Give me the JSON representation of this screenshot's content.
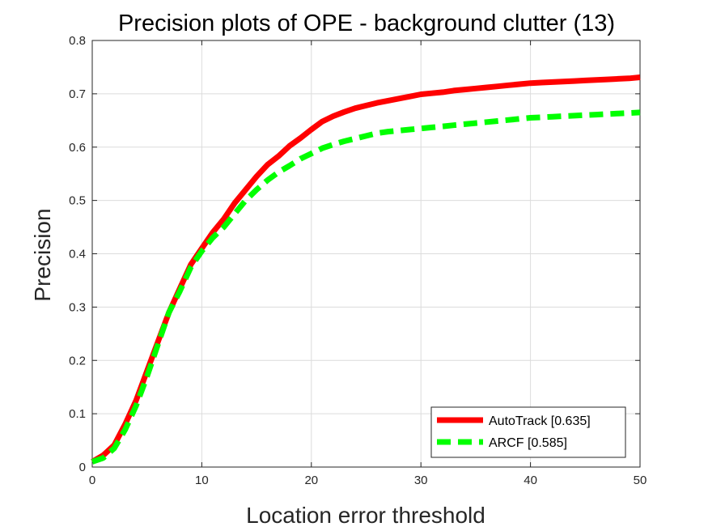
{
  "chart_data": {
    "type": "line",
    "title": "Precision plots of OPE - background clutter (13)",
    "xlabel": "Location error threshold",
    "ylabel": "Precision",
    "xlim": [
      0,
      50
    ],
    "ylim": [
      0,
      0.8
    ],
    "xticks": [
      "0",
      "10",
      "20",
      "30",
      "40",
      "50"
    ],
    "yticks": [
      "0",
      "0.1",
      "0.2",
      "0.3",
      "0.4",
      "0.5",
      "0.6",
      "0.7",
      "0.8"
    ],
    "grid": true,
    "legend_position": "bottom-right",
    "x": [
      0,
      1,
      2,
      3,
      4,
      5,
      6,
      7,
      8,
      9,
      10,
      11,
      12,
      13,
      14,
      15,
      16,
      17,
      18,
      19,
      20,
      21,
      22,
      23,
      24,
      25,
      26,
      27,
      28,
      29,
      30,
      31,
      32,
      33,
      34,
      35,
      36,
      37,
      38,
      39,
      40,
      41,
      42,
      43,
      44,
      45,
      46,
      47,
      48,
      49,
      50
    ],
    "series": [
      {
        "name": "AutoTrack [0.635]",
        "color": "#ff0000",
        "style": "solid",
        "values": [
          0.01,
          0.022,
          0.041,
          0.08,
          0.125,
          0.18,
          0.235,
          0.29,
          0.335,
          0.38,
          0.41,
          0.44,
          0.465,
          0.495,
          0.52,
          0.545,
          0.567,
          0.583,
          0.602,
          0.617,
          0.633,
          0.648,
          0.658,
          0.666,
          0.673,
          0.678,
          0.683,
          0.687,
          0.691,
          0.695,
          0.699,
          0.701,
          0.703,
          0.706,
          0.708,
          0.71,
          0.712,
          0.714,
          0.716,
          0.718,
          0.72,
          0.721,
          0.722,
          0.723,
          0.724,
          0.725,
          0.726,
          0.727,
          0.728,
          0.729,
          0.731
        ]
      },
      {
        "name": "ARCF [0.585]",
        "color": "#00ff00",
        "style": "dashed",
        "values": [
          0.01,
          0.017,
          0.035,
          0.07,
          0.115,
          0.17,
          0.23,
          0.29,
          0.33,
          0.375,
          0.405,
          0.43,
          0.45,
          0.475,
          0.5,
          0.52,
          0.538,
          0.553,
          0.565,
          0.578,
          0.588,
          0.598,
          0.605,
          0.611,
          0.616,
          0.621,
          0.626,
          0.629,
          0.631,
          0.633,
          0.635,
          0.637,
          0.639,
          0.641,
          0.643,
          0.645,
          0.647,
          0.649,
          0.651,
          0.653,
          0.655,
          0.656,
          0.657,
          0.658,
          0.659,
          0.66,
          0.661,
          0.662,
          0.663,
          0.664,
          0.665
        ]
      }
    ]
  }
}
